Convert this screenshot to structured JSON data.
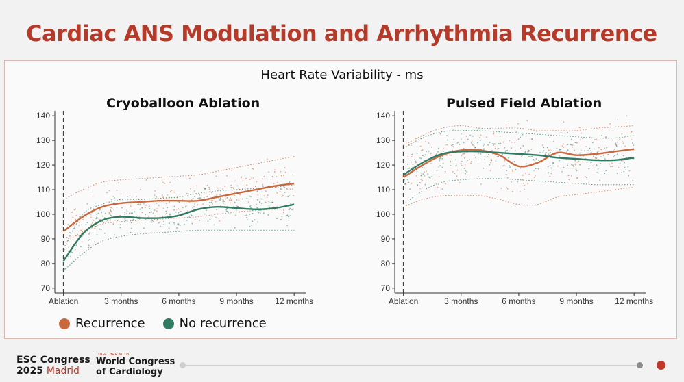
{
  "slide": {
    "title": "Cardiac ANS Modulation and Arrhythmia Recurrence"
  },
  "figure_title": "Heart Rate Variability - ms",
  "colors": {
    "recurrence": "#c8683e",
    "no_recurrence": "#2f7a60",
    "title": "#b43a2a"
  },
  "legend": [
    {
      "label": "Recurrence",
      "color": "#c8683e"
    },
    {
      "label": "No recurrence",
      "color": "#2f7a60"
    }
  ],
  "chart_data": [
    {
      "type": "line",
      "title": "Cryoballoon Ablation",
      "ylabel": "Heart Rate Variability - ms",
      "ylim": [
        68,
        142
      ],
      "yticks": [
        70,
        80,
        90,
        100,
        110,
        120,
        130,
        140
      ],
      "xlim": [
        -0.45,
        12.6
      ],
      "xticks": [
        0,
        3,
        6,
        9,
        12
      ],
      "xtick_labels": [
        "Ablation",
        "3 months",
        "6 months",
        "9 months",
        "12 months"
      ],
      "vline_x": 0,
      "series": [
        {
          "name": "Recurrence",
          "color": "#c8683e",
          "x": [
            0,
            1,
            2,
            3,
            4,
            5,
            6,
            7,
            8,
            9,
            10,
            11,
            12
          ],
          "y": [
            93,
            99,
            103,
            104.5,
            105,
            105.5,
            105.5,
            105.5,
            107,
            108.5,
            110,
            111.5,
            112.5
          ],
          "ci_upper": [
            106,
            110,
            113,
            114,
            114.5,
            115,
            115.5,
            116,
            117.5,
            119,
            120.5,
            122,
            123.5
          ],
          "ci_lower": [
            88,
            93,
            96,
            97,
            97.5,
            98,
            98.5,
            99,
            100,
            101,
            101.5,
            102,
            102
          ]
        },
        {
          "name": "No recurrence",
          "color": "#2f7a60",
          "x": [
            0,
            1,
            2,
            3,
            4,
            5,
            6,
            7,
            8,
            9,
            10,
            11,
            12
          ],
          "y": [
            81,
            92,
            97.5,
            99,
            98.5,
            98.5,
            99.5,
            102,
            103,
            102.5,
            102,
            102.5,
            104
          ],
          "ci_upper": [
            86,
            100,
            104,
            106,
            106,
            106.5,
            107,
            108.5,
            109.5,
            110,
            110.5,
            111,
            112
          ],
          "ci_lower": [
            77,
            84,
            89,
            91,
            92,
            92.5,
            93,
            93.5,
            93.5,
            93.5,
            93.5,
            93.5,
            93.5
          ]
        }
      ]
    },
    {
      "type": "line",
      "title": "Pulsed Field Ablation",
      "ylabel": "Heart Rate Variability - ms",
      "ylim": [
        68,
        142
      ],
      "yticks": [
        70,
        80,
        90,
        100,
        110,
        120,
        130,
        140
      ],
      "xlim": [
        -0.45,
        12.6
      ],
      "xticks": [
        0,
        3,
        6,
        9,
        12
      ],
      "xtick_labels": [
        "Ablation",
        "3 months",
        "6 months",
        "9 months",
        "12 months"
      ],
      "vline_x": 0,
      "series": [
        {
          "name": "Recurrence",
          "color": "#c8683e",
          "x": [
            0,
            1,
            2,
            3,
            4,
            5,
            6,
            7,
            8,
            9,
            10,
            11,
            12
          ],
          "y": [
            115,
            120,
            124,
            126,
            126,
            124,
            119.5,
            121,
            125,
            124,
            124.5,
            125.5,
            126.5
          ],
          "ci_upper": [
            128,
            132,
            135,
            136,
            135,
            135,
            135,
            134,
            134,
            134,
            135,
            135.5,
            136
          ],
          "ci_lower": [
            103,
            106,
            107.5,
            107.5,
            107.5,
            106,
            104,
            104,
            107,
            108,
            109,
            110,
            111
          ]
        },
        {
          "name": "No recurrence",
          "color": "#2f7a60",
          "x": [
            0,
            1,
            2,
            3,
            4,
            5,
            6,
            7,
            8,
            9,
            10,
            11,
            12
          ],
          "y": [
            116,
            121,
            124.5,
            125.5,
            125.5,
            125,
            124.5,
            124,
            123,
            122.5,
            122,
            122,
            123
          ],
          "ci_upper": [
            127,
            131,
            133.5,
            134,
            134,
            133.5,
            133,
            132.5,
            132,
            131.5,
            131,
            131,
            132
          ],
          "ci_lower": [
            104,
            109.5,
            113,
            114,
            114.5,
            114.5,
            114,
            113.5,
            113,
            112.5,
            112,
            112,
            112
          ]
        }
      ]
    }
  ],
  "footer": {
    "esc_line1": "ESC Congress",
    "esc_year": "2025",
    "esc_city": "Madrid",
    "together_with": "TOGETHER WITH",
    "wc_line1": "World Congress",
    "wc_line2": "of Cardiology"
  }
}
